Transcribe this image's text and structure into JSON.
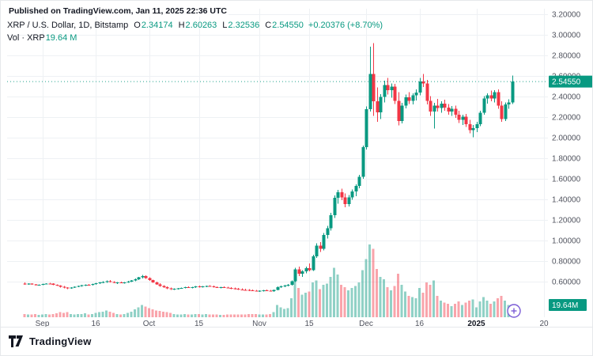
{
  "published_line": "Published on TradingView.com, Jan 11, 2025 22:36 UTC",
  "legend": {
    "title": "XRP / U.S. Dollar, 1D, Bitstamp",
    "ohlc": [
      {
        "label": "O",
        "value": "2.34174"
      },
      {
        "label": "H",
        "value": "2.60263"
      },
      {
        "label": "L",
        "value": "2.32536"
      },
      {
        "label": "C",
        "value": "2.54550"
      }
    ],
    "change": "+0.20376 (+8.70%)",
    "volume_label": "Vol · XRP",
    "volume_value": "19.64 M"
  },
  "footer": {
    "brand": "TradingView"
  },
  "colors": {
    "up": "#089981",
    "down": "#f23645",
    "grid": "#eef1f4",
    "axis_text": "#50535e",
    "dark_text": "#131722",
    "badge_text": "#ffffff",
    "plus_icon": "#7b5cd6"
  },
  "chart_data": {
    "type": "candlestick",
    "symbol": "XRP / U.S. Dollar",
    "interval": "1D",
    "exchange": "Bitstamp",
    "title": "XRP / U.S. Dollar, 1D, Bitstamp",
    "ylim": [
      0.45,
      3.25
    ],
    "grid": true,
    "last_price": 2.5455,
    "last_price_label": "2.54550",
    "last_volume": 19.64,
    "last_volume_label": "19.64M",
    "y_ticks": [
      "3.20000",
      "3.00000",
      "2.80000",
      "2.60000",
      "2.40000",
      "2.20000",
      "2.00000",
      "1.80000",
      "1.60000",
      "1.40000",
      "1.20000",
      "1.00000",
      "0.80000",
      "0.60000"
    ],
    "x_ticks": [
      {
        "label": "Sep",
        "i": 5,
        "bold": false
      },
      {
        "label": "16",
        "i": 20,
        "bold": false
      },
      {
        "label": "Oct",
        "i": 35,
        "bold": false
      },
      {
        "label": "15",
        "i": 49,
        "bold": false
      },
      {
        "label": "Nov",
        "i": 66,
        "bold": false
      },
      {
        "label": "15",
        "i": 80,
        "bold": false
      },
      {
        "label": "Dec",
        "i": 96,
        "bold": false
      },
      {
        "label": "16",
        "i": 111,
        "bold": false
      },
      {
        "label": "2025",
        "i": 127,
        "bold": true
      },
      {
        "label": "20",
        "i": 146,
        "bold": false
      }
    ],
    "candles": [
      [
        0.582,
        0.591,
        0.571,
        0.576,
        6
      ],
      [
        0.576,
        0.584,
        0.568,
        0.58,
        5
      ],
      [
        0.58,
        0.586,
        0.57,
        0.573,
        5
      ],
      [
        0.573,
        0.578,
        0.562,
        0.566,
        6
      ],
      [
        0.566,
        0.574,
        0.56,
        0.571,
        4
      ],
      [
        0.571,
        0.58,
        0.566,
        0.577,
        5
      ],
      [
        0.577,
        0.585,
        0.572,
        0.582,
        6
      ],
      [
        0.582,
        0.59,
        0.575,
        0.579,
        5
      ],
      [
        0.579,
        0.583,
        0.565,
        0.569,
        6
      ],
      [
        0.569,
        0.575,
        0.558,
        0.562,
        7
      ],
      [
        0.562,
        0.566,
        0.544,
        0.549,
        9
      ],
      [
        0.549,
        0.556,
        0.536,
        0.541,
        8
      ],
      [
        0.541,
        0.548,
        0.528,
        0.533,
        9
      ],
      [
        0.533,
        0.545,
        0.529,
        0.542,
        6
      ],
      [
        0.542,
        0.553,
        0.538,
        0.55,
        5
      ],
      [
        0.55,
        0.561,
        0.545,
        0.557,
        6
      ],
      [
        0.557,
        0.568,
        0.551,
        0.564,
        6
      ],
      [
        0.564,
        0.575,
        0.558,
        0.571,
        7
      ],
      [
        0.571,
        0.578,
        0.563,
        0.568,
        5
      ],
      [
        0.568,
        0.58,
        0.562,
        0.576,
        6
      ],
      [
        0.576,
        0.588,
        0.57,
        0.584,
        8
      ],
      [
        0.584,
        0.596,
        0.577,
        0.591,
        9
      ],
      [
        0.591,
        0.604,
        0.584,
        0.598,
        10
      ],
      [
        0.598,
        0.612,
        0.59,
        0.605,
        12
      ],
      [
        0.605,
        0.615,
        0.592,
        0.597,
        10
      ],
      [
        0.597,
        0.603,
        0.583,
        0.588,
        8
      ],
      [
        0.588,
        0.595,
        0.578,
        0.592,
        6
      ],
      [
        0.592,
        0.6,
        0.585,
        0.589,
        5
      ],
      [
        0.589,
        0.597,
        0.582,
        0.594,
        6
      ],
      [
        0.594,
        0.606,
        0.588,
        0.601,
        8
      ],
      [
        0.601,
        0.615,
        0.595,
        0.61,
        10
      ],
      [
        0.61,
        0.629,
        0.603,
        0.624,
        14
      ],
      [
        0.624,
        0.648,
        0.617,
        0.641,
        18
      ],
      [
        0.641,
        0.664,
        0.63,
        0.652,
        22
      ],
      [
        0.652,
        0.661,
        0.628,
        0.635,
        19
      ],
      [
        0.635,
        0.642,
        0.608,
        0.614,
        16
      ],
      [
        0.614,
        0.621,
        0.588,
        0.594,
        14
      ],
      [
        0.594,
        0.601,
        0.568,
        0.575,
        12
      ],
      [
        0.575,
        0.583,
        0.551,
        0.558,
        11
      ],
      [
        0.558,
        0.566,
        0.538,
        0.545,
        10
      ],
      [
        0.545,
        0.552,
        0.527,
        0.533,
        9
      ],
      [
        0.533,
        0.541,
        0.519,
        0.526,
        8
      ],
      [
        0.526,
        0.536,
        0.52,
        0.531,
        6
      ],
      [
        0.531,
        0.54,
        0.524,
        0.536,
        5
      ],
      [
        0.536,
        0.544,
        0.529,
        0.54,
        5
      ],
      [
        0.54,
        0.549,
        0.533,
        0.545,
        6
      ],
      [
        0.545,
        0.553,
        0.537,
        0.542,
        5
      ],
      [
        0.542,
        0.55,
        0.535,
        0.547,
        5
      ],
      [
        0.547,
        0.556,
        0.54,
        0.552,
        6
      ],
      [
        0.552,
        0.561,
        0.544,
        0.549,
        6
      ],
      [
        0.549,
        0.557,
        0.541,
        0.553,
        5
      ],
      [
        0.553,
        0.562,
        0.546,
        0.558,
        6
      ],
      [
        0.558,
        0.566,
        0.549,
        0.554,
        5
      ],
      [
        0.554,
        0.561,
        0.544,
        0.548,
        5
      ],
      [
        0.548,
        0.555,
        0.538,
        0.543,
        5
      ],
      [
        0.543,
        0.551,
        0.535,
        0.547,
        4
      ],
      [
        0.547,
        0.554,
        0.539,
        0.544,
        4
      ],
      [
        0.544,
        0.55,
        0.533,
        0.538,
        5
      ],
      [
        0.538,
        0.545,
        0.528,
        0.533,
        5
      ],
      [
        0.533,
        0.541,
        0.524,
        0.529,
        5
      ],
      [
        0.529,
        0.537,
        0.52,
        0.525,
        5
      ],
      [
        0.525,
        0.533,
        0.516,
        0.521,
        5
      ],
      [
        0.521,
        0.53,
        0.513,
        0.518,
        5
      ],
      [
        0.518,
        0.527,
        0.509,
        0.514,
        6
      ],
      [
        0.514,
        0.523,
        0.506,
        0.511,
        6
      ],
      [
        0.511,
        0.519,
        0.502,
        0.507,
        6
      ],
      [
        0.507,
        0.516,
        0.499,
        0.512,
        5
      ],
      [
        0.512,
        0.521,
        0.504,
        0.517,
        5
      ],
      [
        0.517,
        0.525,
        0.508,
        0.513,
        5
      ],
      [
        0.513,
        0.52,
        0.503,
        0.508,
        6
      ],
      [
        0.508,
        0.523,
        0.501,
        0.519,
        9
      ],
      [
        0.519,
        0.552,
        0.514,
        0.547,
        22
      ],
      [
        0.547,
        0.562,
        0.538,
        0.555,
        18
      ],
      [
        0.555,
        0.569,
        0.546,
        0.561,
        15
      ],
      [
        0.561,
        0.576,
        0.552,
        0.57,
        16
      ],
      [
        0.57,
        0.612,
        0.563,
        0.605,
        34
      ],
      [
        0.605,
        0.735,
        0.598,
        0.721,
        68
      ],
      [
        0.721,
        0.748,
        0.655,
        0.676,
        52
      ],
      [
        0.676,
        0.712,
        0.648,
        0.699,
        40
      ],
      [
        0.699,
        0.745,
        0.682,
        0.731,
        44
      ],
      [
        0.731,
        0.778,
        0.7,
        0.712,
        46
      ],
      [
        0.712,
        0.861,
        0.702,
        0.848,
        62
      ],
      [
        0.848,
        0.972,
        0.832,
        0.951,
        66
      ],
      [
        0.951,
        0.985,
        0.888,
        0.918,
        50
      ],
      [
        0.918,
        1.072,
        0.905,
        1.054,
        58
      ],
      [
        1.054,
        1.142,
        1.021,
        1.118,
        60
      ],
      [
        1.118,
        1.268,
        1.095,
        1.247,
        72
      ],
      [
        1.247,
        1.438,
        1.221,
        1.415,
        88
      ],
      [
        1.415,
        1.492,
        1.358,
        1.468,
        76
      ],
      [
        1.468,
        1.502,
        1.392,
        1.421,
        58
      ],
      [
        1.421,
        1.458,
        1.322,
        1.352,
        54
      ],
      [
        1.352,
        1.442,
        1.331,
        1.421,
        48
      ],
      [
        1.421,
        1.497,
        1.398,
        1.478,
        52
      ],
      [
        1.478,
        1.548,
        1.432,
        1.532,
        56
      ],
      [
        1.532,
        1.638,
        1.508,
        1.621,
        62
      ],
      [
        1.621,
        1.925,
        1.601,
        1.908,
        84
      ],
      [
        1.908,
        2.302,
        1.886,
        2.278,
        104
      ],
      [
        2.278,
        2.885,
        2.252,
        2.618,
        130
      ],
      [
        2.618,
        2.921,
        2.212,
        2.352,
        122
      ],
      [
        2.352,
        2.488,
        2.152,
        2.248,
        86
      ],
      [
        2.248,
        2.425,
        2.181,
        2.398,
        72
      ],
      [
        2.398,
        2.552,
        2.342,
        2.512,
        68
      ],
      [
        2.512,
        2.581,
        2.421,
        2.462,
        54
      ],
      [
        2.462,
        2.528,
        2.388,
        2.498,
        48
      ],
      [
        2.498,
        2.522,
        2.328,
        2.358,
        56
      ],
      [
        2.358,
        2.442,
        2.118,
        2.162,
        78
      ],
      [
        2.162,
        2.338,
        2.138,
        2.312,
        58
      ],
      [
        2.312,
        2.418,
        2.285,
        2.392,
        46
      ],
      [
        2.392,
        2.442,
        2.328,
        2.358,
        38
      ],
      [
        2.358,
        2.432,
        2.322,
        2.412,
        36
      ],
      [
        2.412,
        2.468,
        2.362,
        2.438,
        34
      ],
      [
        2.438,
        2.582,
        2.412,
        2.548,
        52
      ],
      [
        2.548,
        2.618,
        2.492,
        2.528,
        44
      ],
      [
        2.528,
        2.562,
        2.322,
        2.358,
        62
      ],
      [
        2.358,
        2.402,
        2.212,
        2.252,
        58
      ],
      [
        2.252,
        2.338,
        2.088,
        2.312,
        66
      ],
      [
        2.312,
        2.378,
        2.252,
        2.288,
        38
      ],
      [
        2.288,
        2.352,
        2.242,
        2.332,
        30
      ],
      [
        2.332,
        2.368,
        2.262,
        2.292,
        26
      ],
      [
        2.292,
        2.328,
        2.222,
        2.252,
        24
      ],
      [
        2.252,
        2.308,
        2.212,
        2.282,
        20
      ],
      [
        2.282,
        2.312,
        2.192,
        2.222,
        24
      ],
      [
        2.222,
        2.262,
        2.142,
        2.172,
        28
      ],
      [
        2.172,
        2.222,
        2.122,
        2.202,
        22
      ],
      [
        2.202,
        2.232,
        2.102,
        2.132,
        26
      ],
      [
        2.132,
        2.172,
        2.042,
        2.072,
        30
      ],
      [
        2.072,
        2.122,
        2.002,
        2.092,
        32
      ],
      [
        2.092,
        2.152,
        2.052,
        2.132,
        18
      ],
      [
        2.132,
        2.262,
        2.112,
        2.242,
        28
      ],
      [
        2.242,
        2.402,
        2.222,
        2.382,
        36
      ],
      [
        2.382,
        2.432,
        2.332,
        2.412,
        30
      ],
      [
        2.412,
        2.458,
        2.352,
        2.382,
        24
      ],
      [
        2.382,
        2.462,
        2.342,
        2.442,
        28
      ],
      [
        2.442,
        2.468,
        2.282,
        2.312,
        34
      ],
      [
        2.312,
        2.352,
        2.152,
        2.182,
        38
      ],
      [
        2.182,
        2.342,
        2.162,
        2.322,
        30
      ],
      [
        2.322,
        2.372,
        2.282,
        2.342,
        22
      ],
      [
        2.34174,
        2.60263,
        2.32536,
        2.5455,
        19.64
      ]
    ]
  }
}
